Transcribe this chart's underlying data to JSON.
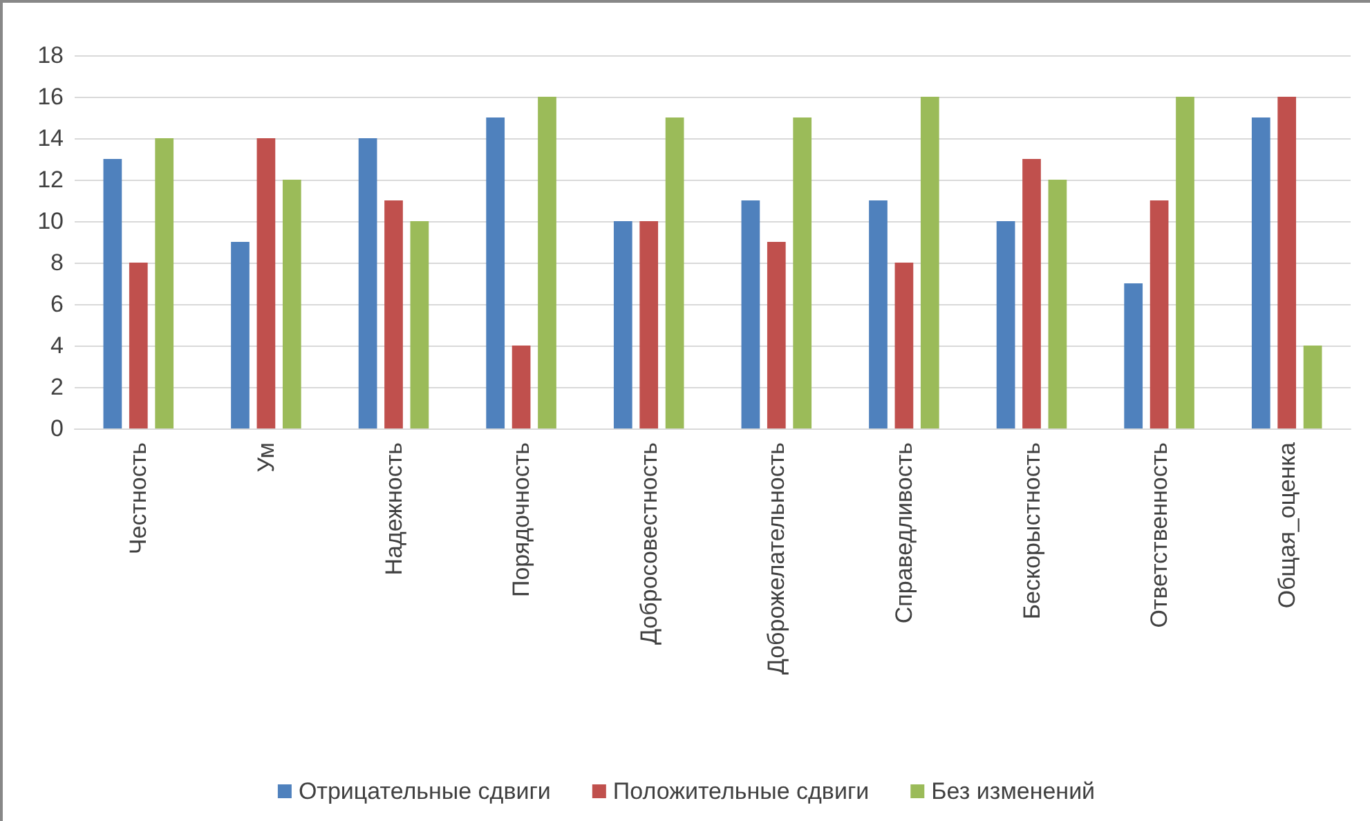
{
  "chart_data": {
    "type": "bar",
    "categories": [
      "Честность",
      "Ум",
      "Надежность",
      "Порядочность",
      "Добросовестность",
      "Доброжелательность",
      "Справедливость",
      "Бескорыстность",
      "Ответственность",
      "Общая_оценка"
    ],
    "series": [
      {
        "name": "Отрицательные сдвиги",
        "color": "#4f81bd",
        "values": [
          13,
          9,
          14,
          15,
          10,
          11,
          11,
          10,
          7,
          15
        ]
      },
      {
        "name": "Положительные сдвиги",
        "color": "#c0504d",
        "values": [
          8,
          14,
          11,
          4,
          10,
          9,
          8,
          13,
          11,
          16
        ]
      },
      {
        "name": "Без изменений",
        "color": "#9bbb59",
        "values": [
          14,
          12,
          10,
          16,
          15,
          15,
          16,
          12,
          16,
          4
        ]
      }
    ],
    "ylim": [
      0,
      18
    ],
    "yticks": [
      0,
      2,
      4,
      6,
      8,
      10,
      12,
      14,
      16,
      18
    ],
    "grid": "y",
    "legend": "bottom"
  }
}
